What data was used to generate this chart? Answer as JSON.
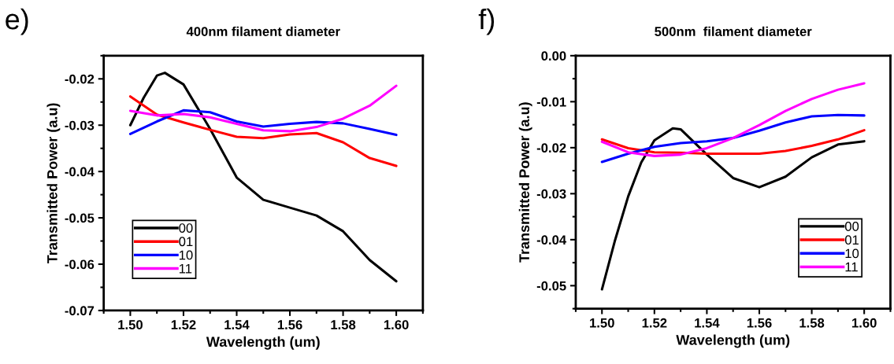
{
  "chart_data": [
    {
      "type": "line",
      "title": "400nm filament diameter",
      "xlabel": "Wavelength (um)",
      "ylabel": "Transmitted Power (a.u)",
      "annotations": [
        "e)"
      ],
      "xlim": [
        1.49,
        1.61
      ],
      "xticks": [
        {
          "value": 1.5,
          "label": "1.50"
        },
        {
          "value": 1.52,
          "label": "1.52"
        },
        {
          "value": 1.54,
          "label": "1.54"
        },
        {
          "value": 1.56,
          "label": "1.56"
        },
        {
          "value": 1.58,
          "label": "1.58"
        },
        {
          "value": 1.6,
          "label": "1.60"
        }
      ],
      "ylim": [
        -0.07,
        -0.015
      ],
      "yticks": [
        {
          "value": -0.07,
          "label": "-0.07"
        },
        {
          "value": -0.06,
          "label": "-0.06"
        },
        {
          "value": -0.05,
          "label": "-0.05"
        },
        {
          "value": -0.04,
          "label": "-0.04"
        },
        {
          "value": -0.03,
          "label": "-0.03"
        },
        {
          "value": -0.02,
          "label": "-0.02"
        }
      ],
      "grid": false,
      "legend": "bottom left",
      "series": [
        {
          "name": "00",
          "color": "#000000",
          "x": [
            1.5,
            1.505,
            1.51,
            1.513,
            1.52,
            1.53,
            1.54,
            1.55,
            1.56,
            1.57,
            1.58,
            1.59,
            1.6
          ],
          "values": [
            -0.03,
            -0.0241,
            -0.0193,
            -0.0187,
            -0.0212,
            -0.0308,
            -0.0413,
            -0.0461,
            -0.0478,
            -0.0495,
            -0.0529,
            -0.0591,
            -0.0637
          ]
        },
        {
          "name": "01",
          "color": "#ff0000",
          "x": [
            1.5,
            1.51,
            1.52,
            1.53,
            1.54,
            1.55,
            1.56,
            1.57,
            1.58,
            1.59,
            1.6
          ],
          "values": [
            -0.0238,
            -0.0277,
            -0.0294,
            -0.031,
            -0.0325,
            -0.0328,
            -0.032,
            -0.0317,
            -0.0337,
            -0.0371,
            -0.0388
          ]
        },
        {
          "name": "10",
          "color": "#0000ff",
          "x": [
            1.5,
            1.51,
            1.52,
            1.53,
            1.54,
            1.55,
            1.56,
            1.57,
            1.58,
            1.59,
            1.6
          ],
          "values": [
            -0.0319,
            -0.0292,
            -0.0268,
            -0.0272,
            -0.0292,
            -0.0303,
            -0.0297,
            -0.0293,
            -0.0296,
            -0.0308,
            -0.0321
          ]
        },
        {
          "name": "11",
          "color": "#ff00ff",
          "x": [
            1.5,
            1.51,
            1.52,
            1.53,
            1.54,
            1.55,
            1.56,
            1.57,
            1.58,
            1.59,
            1.6
          ],
          "values": [
            -0.0269,
            -0.0279,
            -0.0276,
            -0.0283,
            -0.0297,
            -0.0311,
            -0.0313,
            -0.0304,
            -0.0286,
            -0.0258,
            -0.0215
          ]
        }
      ]
    },
    {
      "type": "line",
      "title": "500nm  filament diameter",
      "xlabel": "Wavelength (um)",
      "ylabel": "Transmitted Power (a.u)",
      "annotations": [
        "f)"
      ],
      "xlim": [
        1.49,
        1.61
      ],
      "xticks": [
        {
          "value": 1.5,
          "label": "1.50"
        },
        {
          "value": 1.52,
          "label": "1.52"
        },
        {
          "value": 1.54,
          "label": "1.54"
        },
        {
          "value": 1.56,
          "label": "1.56"
        },
        {
          "value": 1.58,
          "label": "1.58"
        },
        {
          "value": 1.6,
          "label": "1.60"
        }
      ],
      "ylim": [
        -0.055,
        0.0
      ],
      "yticks": [
        {
          "value": -0.05,
          "label": "-0.05"
        },
        {
          "value": -0.04,
          "label": "-0.04"
        },
        {
          "value": -0.03,
          "label": "-0.03"
        },
        {
          "value": -0.02,
          "label": "-0.02"
        },
        {
          "value": -0.01,
          "label": "-0.01"
        },
        {
          "value": 0.0,
          "label": "0.00"
        }
      ],
      "grid": false,
      "legend": "bottom right",
      "series": [
        {
          "name": "00",
          "color": "#000000",
          "x": [
            1.5,
            1.505,
            1.51,
            1.515,
            1.52,
            1.527,
            1.53,
            1.54,
            1.55,
            1.56,
            1.57,
            1.58,
            1.59,
            1.6
          ],
          "values": [
            -0.0508,
            -0.0401,
            -0.0306,
            -0.0232,
            -0.0184,
            -0.0158,
            -0.016,
            -0.0215,
            -0.0266,
            -0.0286,
            -0.0263,
            -0.0221,
            -0.0193,
            -0.0186
          ]
        },
        {
          "name": "01",
          "color": "#ff0000",
          "x": [
            1.5,
            1.51,
            1.52,
            1.53,
            1.54,
            1.55,
            1.56,
            1.57,
            1.58,
            1.59,
            1.6
          ],
          "values": [
            -0.0182,
            -0.0201,
            -0.021,
            -0.0211,
            -0.0213,
            -0.0213,
            -0.0213,
            -0.0207,
            -0.0196,
            -0.0182,
            -0.0162
          ]
        },
        {
          "name": "10",
          "color": "#0000ff",
          "x": [
            1.5,
            1.51,
            1.52,
            1.53,
            1.54,
            1.55,
            1.56,
            1.57,
            1.58,
            1.59,
            1.6
          ],
          "values": [
            -0.0231,
            -0.0213,
            -0.0198,
            -0.019,
            -0.0186,
            -0.0179,
            -0.0163,
            -0.0145,
            -0.0132,
            -0.0129,
            -0.013
          ]
        },
        {
          "name": "11",
          "color": "#ff00ff",
          "x": [
            1.5,
            1.51,
            1.52,
            1.53,
            1.54,
            1.55,
            1.56,
            1.57,
            1.58,
            1.59,
            1.6
          ],
          "values": [
            -0.0187,
            -0.021,
            -0.0218,
            -0.0215,
            -0.0201,
            -0.0179,
            -0.0151,
            -0.012,
            -0.0094,
            -0.0074,
            -0.006
          ]
        }
      ]
    }
  ]
}
